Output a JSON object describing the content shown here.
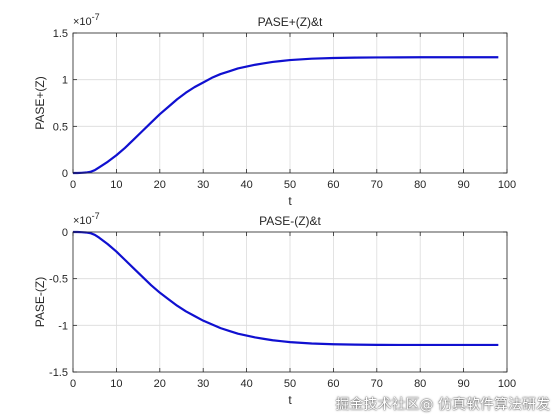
{
  "colors": {
    "line": "#1010d0",
    "grid": "#dcdcdc",
    "axis": "#262626"
  },
  "watermark": "掘金技术社区@ 仿真软件算法研发",
  "chart_data": [
    {
      "type": "line",
      "title": "PASE+(Z)&t",
      "xlabel": "t",
      "ylabel": "PASE+(Z)",
      "exponent_label": "×10^-7",
      "exponent_base": "×10",
      "exponent_power": "-7",
      "xlim": [
        0,
        100
      ],
      "ylim": [
        0,
        1.5
      ],
      "xticks": [
        "0",
        "10",
        "20",
        "30",
        "40",
        "50",
        "60",
        "70",
        "80",
        "90",
        "100"
      ],
      "yticks": [
        "0",
        "0.5",
        "1",
        "1.5"
      ],
      "grid": true,
      "series": [
        {
          "x": [
            0,
            1,
            2,
            3,
            4,
            5,
            6,
            8,
            10,
            12,
            14,
            16,
            18,
            20,
            22,
            24,
            26,
            28,
            30,
            32,
            34,
            36,
            38,
            40,
            42,
            44,
            46,
            48,
            50,
            55,
            60,
            65,
            70,
            75,
            80,
            85,
            90,
            95,
            98
          ],
          "y": [
            0,
            0,
            0.002,
            0.005,
            0.012,
            0.03,
            0.06,
            0.12,
            0.19,
            0.27,
            0.36,
            0.45,
            0.54,
            0.63,
            0.71,
            0.79,
            0.86,
            0.92,
            0.97,
            1.02,
            1.06,
            1.09,
            1.12,
            1.14,
            1.16,
            1.175,
            1.19,
            1.2,
            1.21,
            1.225,
            1.232,
            1.236,
            1.238,
            1.239,
            1.24,
            1.24,
            1.24,
            1.24,
            1.24
          ]
        }
      ]
    },
    {
      "type": "line",
      "title": "PASE-(Z)&t",
      "xlabel": "t",
      "ylabel": "PASE-(Z)",
      "exponent_label": "×10^-7",
      "exponent_base": "×10",
      "exponent_power": "-7",
      "xlim": [
        0,
        100
      ],
      "ylim": [
        -1.5,
        0
      ],
      "xticks": [
        "0",
        "10",
        "20",
        "30",
        "40",
        "50",
        "60",
        "70",
        "80",
        "90",
        "100"
      ],
      "yticks": [
        "0",
        "-0.5",
        "-1",
        "-1.5"
      ],
      "grid": true,
      "series": [
        {
          "x": [
            0,
            1,
            2,
            3,
            4,
            5,
            6,
            8,
            10,
            12,
            14,
            16,
            18,
            20,
            22,
            24,
            26,
            28,
            30,
            32,
            34,
            36,
            38,
            40,
            42,
            44,
            46,
            48,
            50,
            55,
            60,
            65,
            70,
            75,
            80,
            85,
            90,
            95,
            98
          ],
          "y": [
            0,
            0,
            -0.002,
            -0.005,
            -0.012,
            -0.03,
            -0.06,
            -0.13,
            -0.21,
            -0.3,
            -0.39,
            -0.48,
            -0.57,
            -0.65,
            -0.72,
            -0.79,
            -0.85,
            -0.9,
            -0.95,
            -0.99,
            -1.03,
            -1.06,
            -1.09,
            -1.11,
            -1.13,
            -1.145,
            -1.16,
            -1.17,
            -1.18,
            -1.195,
            -1.203,
            -1.207,
            -1.209,
            -1.21,
            -1.21,
            -1.21,
            -1.21,
            -1.21,
            -1.21
          ]
        }
      ]
    }
  ]
}
